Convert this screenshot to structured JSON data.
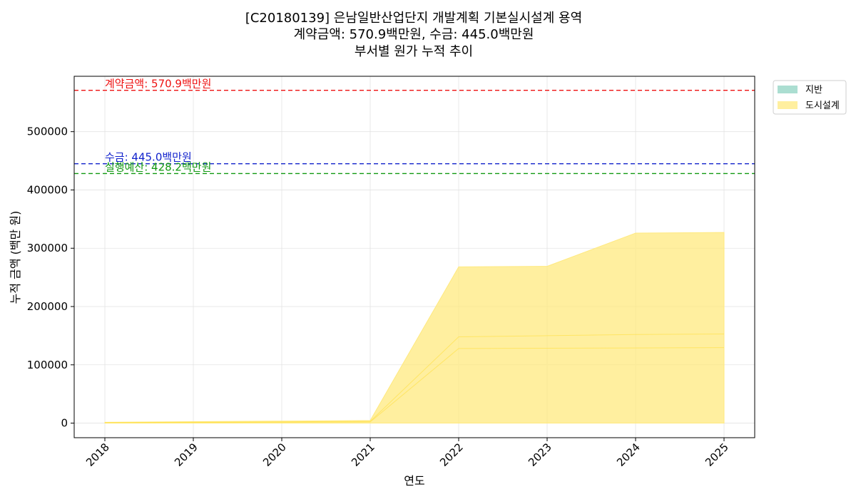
{
  "chart_data": {
    "type": "area",
    "stacked": true,
    "title_lines": [
      "[C20180139] 은남일반산업단지 개발계획 기본실시설계 용역",
      "계약금액: 570.9백만원, 수금: 445.0백만원",
      "부서별 원가 누적 추이"
    ],
    "xlabel": "연도",
    "ylabel": "누적 금액 (백만 원)",
    "x": [
      "2018",
      "2019",
      "2020",
      "2021",
      "2022",
      "2023",
      "2024",
      "2025"
    ],
    "ylim": [
      -25000,
      595000
    ],
    "yticks": [
      0,
      100000,
      200000,
      300000,
      400000,
      500000
    ],
    "grid": true,
    "legend_position": "outside-top-right",
    "series": [
      {
        "name": "지반",
        "color": "#8fd3c2",
        "values": [
          0,
          0,
          0,
          0,
          0,
          0,
          0,
          0
        ]
      },
      {
        "name": "도시설계",
        "color": "#ffe97f",
        "values": [
          1500,
          2500,
          3500,
          4500,
          268000,
          269000,
          326000,
          327000
        ]
      }
    ],
    "inner_lines": [
      {
        "values": [
          800,
          1500,
          2200,
          3000,
          148000,
          150000,
          152000,
          153000
        ]
      },
      {
        "values": [
          500,
          1000,
          1500,
          2000,
          128000,
          128500,
          129000,
          129500
        ]
      }
    ],
    "reference_lines": [
      {
        "label": "계약금액: 570.9백만원",
        "value": 570900,
        "color": "#ee1111"
      },
      {
        "label": "수금: 445.0백만원",
        "value": 445000,
        "color": "#1122cc"
      },
      {
        "label": "실행예산: 428.2백만원",
        "value": 428200,
        "color": "#119911"
      }
    ]
  }
}
